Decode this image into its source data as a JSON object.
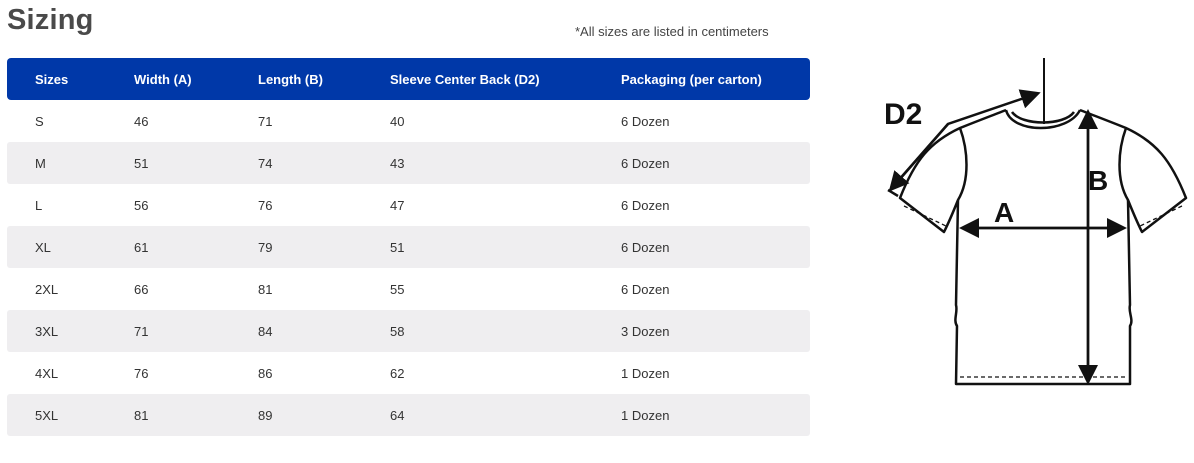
{
  "page": {
    "title": "Sizing",
    "note": "*All sizes are listed in centimeters"
  },
  "table": {
    "headers": [
      "Sizes",
      "Width (A)",
      "Length (B)",
      "Sleeve Center Back (D2)",
      "Packaging (per carton)"
    ],
    "rows": [
      [
        "S",
        "46",
        "71",
        "40",
        "6 Dozen"
      ],
      [
        "M",
        "51",
        "74",
        "43",
        "6 Dozen"
      ],
      [
        "L",
        "56",
        "76",
        "47",
        "6 Dozen"
      ],
      [
        "XL",
        "61",
        "79",
        "51",
        "6 Dozen"
      ],
      [
        "2XL",
        "66",
        "81",
        "55",
        "6 Dozen"
      ],
      [
        "3XL",
        "71",
        "84",
        "58",
        "3 Dozen"
      ],
      [
        "4XL",
        "76",
        "86",
        "62",
        "1 Dozen"
      ],
      [
        "5XL",
        "81",
        "89",
        "64",
        "1 Dozen"
      ]
    ]
  },
  "diagram": {
    "label_a": "A",
    "label_b": "B",
    "label_d2": "D2",
    "icon": "tshirt-measurement-icon"
  },
  "colors": {
    "header_bg": "#0038a8",
    "row_alt_bg": "#efeef0",
    "title_color": "#4a4a4a"
  }
}
